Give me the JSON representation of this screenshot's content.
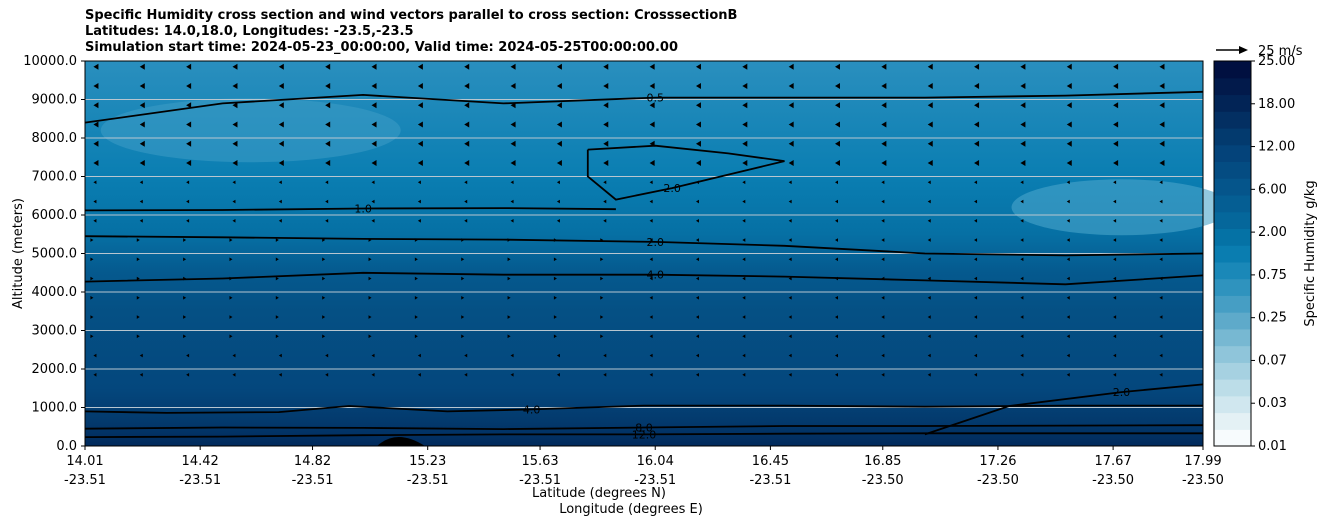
{
  "chart_data": {
    "type": "contour",
    "title": [
      "Specific Humidity cross section and wind vectors parallel to cross section: CrosssectionB",
      "Latitudes: 14.0,18.0, Longitudes: -23.5,-23.5",
      "Simulation start time: 2024-05-23_00:00:00, Valid time: 2024-05-25T00:00:00.00"
    ],
    "xlabel_lat": "Latitude (degrees N)",
    "xlabel_lon": "Longitude (degrees E)",
    "ylabel": "Altitude (meters)",
    "ylim": [
      0,
      10000
    ],
    "y_ticks": [
      "0.0",
      "1000.0",
      "2000.0",
      "3000.0",
      "4000.0",
      "5000.0",
      "6000.0",
      "7000.0",
      "8000.0",
      "9000.0",
      "10000.0"
    ],
    "x_range_lat": [
      14.01,
      17.99
    ],
    "x_ticks": [
      {
        "lat": "14.01",
        "lon": "-23.51"
      },
      {
        "lat": "14.42",
        "lon": "-23.51"
      },
      {
        "lat": "14.82",
        "lon": "-23.51"
      },
      {
        "lat": "15.23",
        "lon": "-23.51"
      },
      {
        "lat": "15.63",
        "lon": "-23.51"
      },
      {
        "lat": "16.04",
        "lon": "-23.51"
      },
      {
        "lat": "16.45",
        "lon": "-23.51"
      },
      {
        "lat": "16.85",
        "lon": "-23.50"
      },
      {
        "lat": "17.26",
        "lon": "-23.50"
      },
      {
        "lat": "17.67",
        "lon": "-23.50"
      },
      {
        "lat": "17.99",
        "lon": "-23.50"
      }
    ],
    "colorbar_label": "Specific Humidity g/kg",
    "colorbar_ticks": [
      "0.01",
      "0.03",
      "0.07",
      "0.25",
      "0.75",
      "2.00",
      "6.00",
      "12.00",
      "18.00",
      "25.00"
    ],
    "colorbar_colors": [
      "#f7fbfd",
      "#e4f1f5",
      "#d0e7ef",
      "#bcdde8",
      "#a6d1e1",
      "#8fc5da",
      "#77b8d2",
      "#5eaaca",
      "#469ec4",
      "#2f93be",
      "#1a88b8",
      "#0a7db0",
      "#0572a5",
      "#05679b",
      "#055e93",
      "#05558b",
      "#044c82",
      "#04437a",
      "#033a6e",
      "#032f62",
      "#022456",
      "#021a4b",
      "#011040"
    ],
    "quiver_key": "25 m/s",
    "contour_lines": [
      {
        "level": "12.0",
        "points": [
          [
            14.01,
            230
          ],
          [
            14.5,
            245
          ],
          [
            15.0,
            280
          ],
          [
            15.5,
            300
          ],
          [
            16.0,
            300
          ],
          [
            16.5,
            320
          ],
          [
            17.0,
            330
          ],
          [
            17.5,
            330
          ],
          [
            17.99,
            330
          ]
        ]
      },
      {
        "level": "8.0",
        "points": [
          [
            14.01,
            450
          ],
          [
            14.5,
            480
          ],
          [
            15.0,
            470
          ],
          [
            15.5,
            440
          ],
          [
            16.0,
            480
          ],
          [
            16.5,
            520
          ],
          [
            17.0,
            520
          ],
          [
            17.5,
            530
          ],
          [
            17.99,
            540
          ]
        ]
      },
      {
        "level": "4.0 (low)",
        "points": [
          [
            14.01,
            900
          ],
          [
            14.3,
            860
          ],
          [
            14.7,
            880
          ],
          [
            14.95,
            1040
          ],
          [
            15.3,
            900
          ],
          [
            15.6,
            950
          ],
          [
            16.0,
            1050
          ],
          [
            16.5,
            1050
          ],
          [
            17.0,
            1020
          ],
          [
            17.5,
            1050
          ],
          [
            17.99,
            1050
          ]
        ]
      },
      {
        "level": "2.0 (low)",
        "points": [
          [
            17.0,
            300
          ],
          [
            17.3,
            1040
          ],
          [
            17.7,
            1400
          ],
          [
            17.99,
            1600
          ]
        ]
      },
      {
        "level": "4.0",
        "points": [
          [
            14.01,
            4270
          ],
          [
            14.5,
            4350
          ],
          [
            15.0,
            4500
          ],
          [
            15.5,
            4450
          ],
          [
            16.04,
            4450
          ],
          [
            16.5,
            4400
          ],
          [
            17.0,
            4300
          ],
          [
            17.5,
            4200
          ],
          [
            17.99,
            4430
          ]
        ]
      },
      {
        "level": "2.0",
        "points": [
          [
            14.01,
            5450
          ],
          [
            14.5,
            5420
          ],
          [
            15.0,
            5380
          ],
          [
            15.5,
            5360
          ],
          [
            16.04,
            5300
          ],
          [
            16.5,
            5200
          ],
          [
            17.0,
            5000
          ],
          [
            17.5,
            4950
          ],
          [
            17.99,
            5000
          ]
        ]
      },
      {
        "level": "1.0",
        "points": [
          [
            14.01,
            6120
          ],
          [
            14.5,
            6130
          ],
          [
            15.0,
            6170
          ],
          [
            15.5,
            6180
          ],
          [
            15.9,
            6150
          ]
        ]
      },
      {
        "level": "2.0 (upper)",
        "points": [
          [
            15.8,
            7700
          ],
          [
            16.04,
            7800
          ],
          [
            16.3,
            7600
          ],
          [
            16.5,
            7400
          ],
          [
            16.1,
            6700
          ],
          [
            15.9,
            6400
          ],
          [
            15.8,
            7000
          ],
          [
            15.8,
            7700
          ]
        ]
      },
      {
        "level": "0.5",
        "points": [
          [
            14.01,
            8400
          ],
          [
            14.5,
            8900
          ],
          [
            15.0,
            9120
          ],
          [
            15.5,
            8900
          ],
          [
            16.04,
            9050
          ],
          [
            16.5,
            9050
          ],
          [
            17.0,
            9050
          ],
          [
            17.5,
            9100
          ],
          [
            17.99,
            9200
          ]
        ]
      }
    ]
  }
}
